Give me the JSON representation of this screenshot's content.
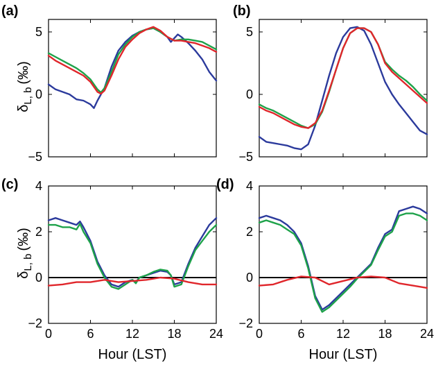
{
  "figure": {
    "ylabel_main": "δ",
    "ylabel_sub": "L, b",
    "ylabel_unit": "(‰)",
    "xlabel": "Hour (LST)"
  },
  "colors": {
    "blue": "#2b3a9c",
    "green": "#1ea24a",
    "red": "#e0262b",
    "axis": "#000000"
  },
  "chart_data": [
    {
      "panel": "(a)",
      "type": "line",
      "xlim": [
        0,
        24
      ],
      "ylim": [
        -5,
        6
      ],
      "xticks": [
        0,
        6,
        12,
        18,
        24
      ],
      "xtick_labels": [],
      "yticks": [
        -5,
        0,
        5
      ],
      "series": [
        {
          "color": "blue",
          "x": [
            0,
            1,
            2,
            3,
            4,
            5,
            6,
            6.5,
            7,
            7.5,
            8,
            9,
            10,
            11,
            12,
            13,
            14,
            15,
            16,
            17,
            17.5,
            18,
            18.5,
            19,
            20,
            21,
            22,
            23,
            24
          ],
          "y": [
            0.8,
            0.4,
            0.2,
            0.0,
            -0.4,
            -0.5,
            -0.8,
            -1.1,
            -0.5,
            0.0,
            0.5,
            2.2,
            3.5,
            4.2,
            4.7,
            5.0,
            5.2,
            5.3,
            5.0,
            4.6,
            4.2,
            4.5,
            4.8,
            4.6,
            4.1,
            3.5,
            2.8,
            1.8,
            1.1
          ]
        },
        {
          "color": "green",
          "x": [
            0,
            1,
            2,
            3,
            4,
            5,
            6,
            7,
            7.5,
            8,
            9,
            10,
            11,
            12,
            13,
            14,
            15,
            16,
            17,
            18,
            19,
            20,
            21,
            22,
            23,
            24
          ],
          "y": [
            3.3,
            3.0,
            2.7,
            2.4,
            2.1,
            1.7,
            1.2,
            0.4,
            0.15,
            0.5,
            1.8,
            3.2,
            4.0,
            4.6,
            5.0,
            5.2,
            5.3,
            5.0,
            4.6,
            4.3,
            4.4,
            4.4,
            4.3,
            4.2,
            3.9,
            3.6
          ]
        },
        {
          "color": "red",
          "x": [
            0,
            1,
            2,
            3,
            4,
            5,
            6,
            7,
            7.5,
            8,
            9,
            10,
            11,
            12,
            13,
            14,
            15,
            16,
            17,
            18,
            19,
            20,
            21,
            22,
            23,
            24
          ],
          "y": [
            3.1,
            2.7,
            2.4,
            2.1,
            1.8,
            1.5,
            1.0,
            0.2,
            0.05,
            0.3,
            1.5,
            2.8,
            3.8,
            4.4,
            4.9,
            5.2,
            5.4,
            5.1,
            4.6,
            4.3,
            4.3,
            4.2,
            4.1,
            3.9,
            3.7,
            3.4
          ]
        }
      ]
    },
    {
      "panel": "(b)",
      "type": "line",
      "xlim": [
        0,
        24
      ],
      "ylim": [
        -5,
        6
      ],
      "xticks": [
        0,
        6,
        12,
        18,
        24
      ],
      "xtick_labels": [],
      "yticks": [
        -5,
        0,
        5
      ],
      "series": [
        {
          "color": "blue",
          "x": [
            0,
            1,
            2,
            3,
            4,
            5,
            6,
            7,
            8,
            9,
            10,
            11,
            12,
            13,
            14,
            15,
            16,
            17,
            18,
            19,
            20,
            21,
            22,
            23,
            24
          ],
          "y": [
            -3.4,
            -3.8,
            -3.9,
            -4.0,
            -4.1,
            -4.3,
            -4.4,
            -4.0,
            -2.5,
            -0.5,
            1.5,
            3.3,
            4.6,
            5.3,
            5.4,
            5.1,
            4.0,
            2.5,
            1.0,
            0.0,
            -0.8,
            -1.5,
            -2.2,
            -2.9,
            -3.2
          ]
        },
        {
          "color": "green",
          "x": [
            0,
            1,
            2,
            3,
            4,
            5,
            6,
            7,
            8,
            9,
            10,
            11,
            12,
            13,
            14,
            15,
            16,
            17,
            18,
            19,
            20,
            21,
            22,
            23,
            24
          ],
          "y": [
            -0.8,
            -1.1,
            -1.3,
            -1.6,
            -1.9,
            -2.2,
            -2.5,
            -2.7,
            -2.4,
            -1.4,
            0.2,
            2.0,
            3.7,
            4.9,
            5.3,
            5.3,
            5.0,
            4.0,
            2.6,
            2.0,
            1.5,
            1.1,
            0.6,
            0.0,
            -0.5
          ]
        },
        {
          "color": "red",
          "x": [
            0,
            1,
            2,
            3,
            4,
            5,
            6,
            7,
            8,
            9,
            10,
            11,
            12,
            13,
            14,
            15,
            16,
            17,
            18,
            19,
            20,
            21,
            22,
            23,
            24
          ],
          "y": [
            -1.0,
            -1.3,
            -1.5,
            -1.8,
            -2.1,
            -2.4,
            -2.6,
            -2.7,
            -2.3,
            -1.3,
            0.3,
            2.0,
            3.7,
            4.9,
            5.3,
            5.3,
            5.0,
            4.0,
            2.5,
            1.8,
            1.3,
            0.8,
            0.3,
            -0.2,
            -0.7
          ]
        }
      ]
    },
    {
      "panel": "(c)",
      "type": "line",
      "xlim": [
        0,
        24
      ],
      "ylim": [
        -2,
        4
      ],
      "xticks": [
        0,
        6,
        12,
        18,
        24
      ],
      "xtick_labels": [
        "0",
        "6",
        "12",
        "18",
        "24"
      ],
      "yticks": [
        -2,
        0,
        2,
        4
      ],
      "zero_line": true,
      "series": [
        {
          "color": "blue",
          "x": [
            0,
            1,
            2,
            3,
            4,
            4.5,
            5,
            6,
            7,
            8,
            9,
            10,
            11,
            12,
            12.5,
            13,
            14,
            15,
            16,
            17,
            17.5,
            18,
            19,
            20,
            21,
            22,
            23,
            24
          ],
          "y": [
            2.5,
            2.6,
            2.5,
            2.4,
            2.3,
            2.45,
            2.2,
            1.6,
            0.7,
            0.1,
            -0.3,
            -0.4,
            -0.2,
            -0.1,
            -0.2,
            0.0,
            0.1,
            0.2,
            0.3,
            0.25,
            0.1,
            -0.3,
            -0.2,
            0.6,
            1.3,
            1.8,
            2.3,
            2.6
          ]
        },
        {
          "color": "green",
          "x": [
            0,
            1,
            2,
            3,
            4,
            4.5,
            5,
            6,
            7,
            8,
            9,
            10,
            11,
            12,
            12.5,
            13,
            14,
            15,
            16,
            17,
            17.5,
            18,
            19,
            20,
            21,
            22,
            23,
            24
          ],
          "y": [
            2.3,
            2.3,
            2.2,
            2.2,
            2.1,
            2.35,
            2.0,
            1.5,
            0.6,
            0.0,
            -0.4,
            -0.5,
            -0.3,
            -0.1,
            -0.25,
            0.0,
            0.1,
            0.25,
            0.35,
            0.3,
            0.1,
            -0.4,
            -0.3,
            0.5,
            1.2,
            1.6,
            2.0,
            2.3
          ]
        },
        {
          "color": "red",
          "x": [
            0,
            2,
            4,
            6,
            8,
            10,
            12,
            14,
            16,
            18,
            20,
            22,
            24
          ],
          "y": [
            -0.35,
            -0.3,
            -0.2,
            -0.2,
            -0.1,
            -0.2,
            -0.15,
            -0.1,
            0.0,
            -0.05,
            -0.2,
            -0.3,
            -0.3
          ]
        }
      ]
    },
    {
      "panel": "(d)",
      "type": "line",
      "xlim": [
        0,
        24
      ],
      "ylim": [
        -2,
        4
      ],
      "xticks": [
        0,
        6,
        12,
        18,
        24
      ],
      "xtick_labels": [
        "0",
        "6",
        "12",
        "18",
        "24"
      ],
      "yticks": [
        -2,
        0,
        2,
        4
      ],
      "zero_line": true,
      "series": [
        {
          "color": "blue",
          "x": [
            0,
            1,
            2,
            3,
            4,
            5,
            6,
            7,
            8,
            9,
            10,
            11,
            12,
            13,
            14,
            15,
            16,
            17,
            18,
            19,
            20,
            21,
            22,
            23,
            24
          ],
          "y": [
            2.6,
            2.7,
            2.6,
            2.5,
            2.3,
            2.0,
            1.5,
            0.5,
            -0.8,
            -1.4,
            -1.2,
            -0.9,
            -0.6,
            -0.3,
            0.0,
            0.3,
            0.6,
            1.3,
            1.9,
            2.1,
            2.9,
            3.0,
            3.1,
            3.0,
            2.8
          ]
        },
        {
          "color": "green",
          "x": [
            0,
            1,
            2,
            3,
            4,
            5,
            6,
            7,
            8,
            9,
            10,
            11,
            12,
            13,
            14,
            15,
            16,
            17,
            18,
            19,
            20,
            21,
            22,
            23,
            24
          ],
          "y": [
            2.4,
            2.5,
            2.4,
            2.3,
            2.1,
            1.9,
            1.4,
            0.4,
            -0.9,
            -1.5,
            -1.3,
            -1.0,
            -0.7,
            -0.4,
            -0.05,
            0.25,
            0.55,
            1.2,
            1.8,
            2.0,
            2.7,
            2.8,
            2.8,
            2.7,
            2.5
          ]
        },
        {
          "color": "red",
          "x": [
            0,
            2,
            4,
            6,
            8,
            10,
            12,
            14,
            16,
            18,
            20,
            22,
            24
          ],
          "y": [
            -0.35,
            -0.3,
            -0.1,
            0.05,
            0.0,
            -0.3,
            -0.15,
            0.0,
            0.05,
            0.0,
            -0.25,
            -0.35,
            -0.45
          ]
        }
      ]
    }
  ]
}
